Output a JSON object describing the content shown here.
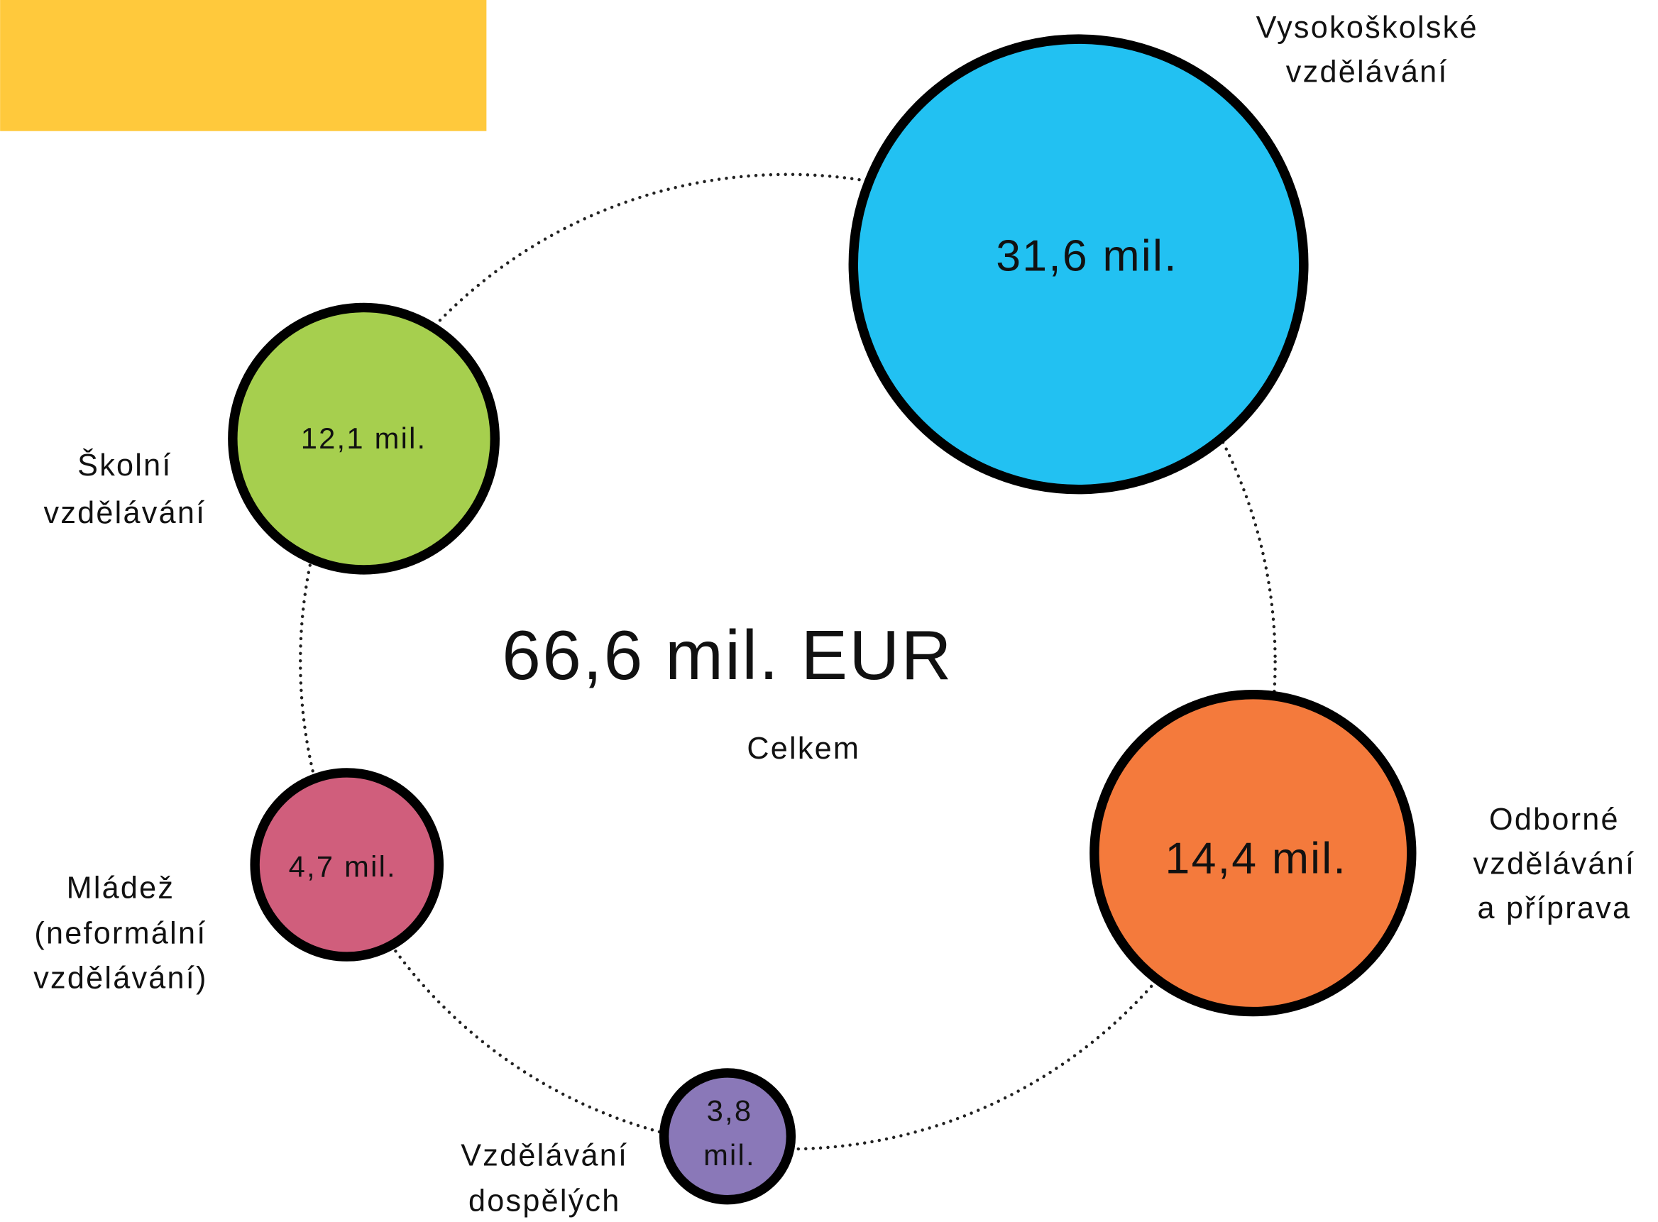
{
  "total": {
    "value": "66,6 mil. EUR",
    "caption": "Celkem"
  },
  "nodes": [
    {
      "label": [
        "Vysokoškolské",
        "vzdělávání"
      ],
      "value": [
        "31,6 mil."
      ]
    },
    {
      "label": [
        "Školní",
        "vzdělávání"
      ],
      "value": [
        "12,1 mil."
      ]
    },
    {
      "label": [
        "Odborné",
        "vzdělávání",
        "a příprava"
      ],
      "value": [
        "14,4 mil."
      ]
    },
    {
      "label": [
        "Mládež",
        "(neformální",
        "vzdělávání)"
      ],
      "value": [
        "4,7 mil."
      ]
    },
    {
      "label": [
        "Vzdělávání",
        "dospělých"
      ],
      "value": [
        "3,8",
        "mil."
      ]
    }
  ]
}
